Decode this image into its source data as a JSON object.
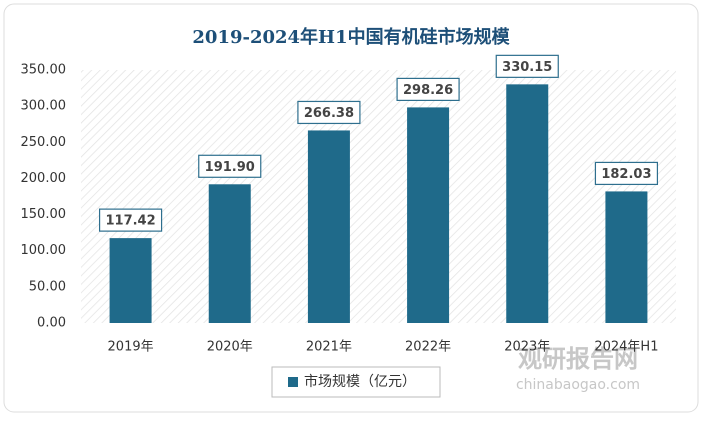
{
  "chart_data": {
    "type": "bar",
    "title": "2019-2024年H1中国有机硅市场规模",
    "categories": [
      "2019年",
      "2020年",
      "2021年",
      "2022年",
      "2023年",
      "2024年H1"
    ],
    "series": [
      {
        "name": "市场规模（亿元）",
        "color": "#1f6a8a",
        "values": [
          117.42,
          191.9,
          266.38,
          298.26,
          330.15,
          182.03
        ],
        "value_labels": [
          "117.42",
          "191.90",
          "266.38",
          "298.26",
          "330.15",
          "182.03"
        ]
      }
    ],
    "ylim": [
      0,
      350
    ],
    "yticks": [
      {
        "value": 0,
        "label": "0.00"
      },
      {
        "value": 50,
        "label": "50.00"
      },
      {
        "value": 100,
        "label": "100.00"
      },
      {
        "value": 150,
        "label": "150.00"
      },
      {
        "value": 200,
        "label": "200.00"
      },
      {
        "value": 250,
        "label": "250.00"
      },
      {
        "value": 300,
        "label": "300.00"
      },
      {
        "value": 350,
        "label": "350.00"
      }
    ],
    "watermark": {
      "brand": "观研报告网",
      "site": "chinabaogao.com"
    }
  }
}
